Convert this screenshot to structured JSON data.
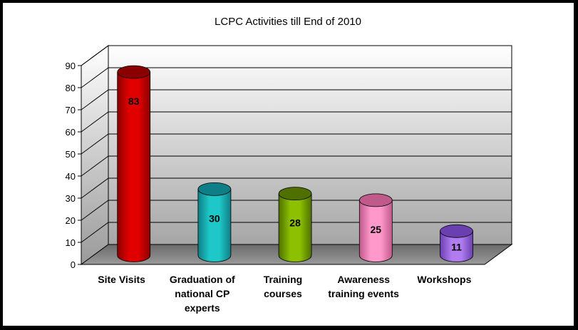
{
  "chart_data": {
    "type": "bar",
    "title": "LCPC Activities till End of 2010",
    "categories": [
      [
        "Site Visits"
      ],
      [
        "Graduation of",
        "national CP",
        "experts"
      ],
      [
        "Training",
        "courses"
      ],
      [
        "Awareness",
        "training events"
      ],
      [
        "Workshops"
      ]
    ],
    "values": [
      83,
      30,
      28,
      25,
      11
    ],
    "ylim": [
      0,
      90
    ],
    "yticks": [
      0,
      10,
      20,
      30,
      40,
      50,
      60,
      70,
      80,
      90
    ],
    "grid": true,
    "bar_style": "3d-cylinder",
    "colors": [
      "#e00000",
      "#1fc8c8",
      "#8cc000",
      "#ff99cc",
      "#b07cf0"
    ],
    "dark_colors": [
      "#8a0000",
      "#0e7f86",
      "#4f7000",
      "#c05a8a",
      "#6a40b0"
    ]
  }
}
